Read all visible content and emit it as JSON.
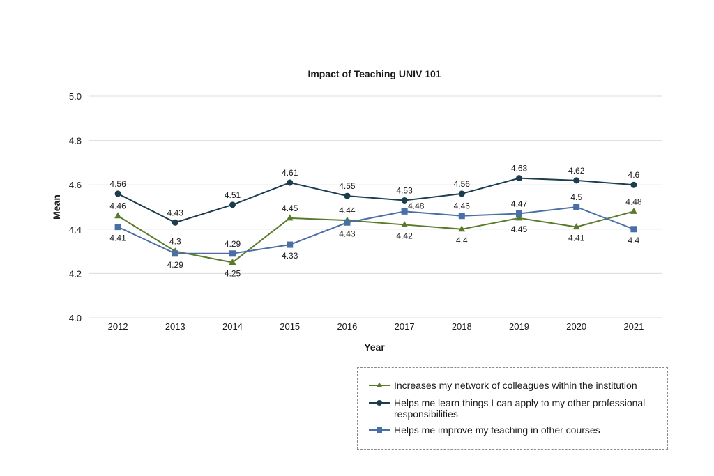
{
  "chart_data": {
    "type": "line",
    "title": "Impact of Teaching UNIV 101",
    "xlabel": "Year",
    "ylabel": "Mean",
    "ylim": [
      4.0,
      5.0
    ],
    "yticks": [
      "4.0",
      "4.2",
      "4.4",
      "4.6",
      "4.8",
      "5.0"
    ],
    "ytick_values": [
      4.0,
      4.2,
      4.4,
      4.6,
      4.8,
      5.0
    ],
    "grid": true,
    "legend_position": "bottom-right",
    "categories": [
      "2012",
      "2013",
      "2014",
      "2015",
      "2016",
      "2017",
      "2018",
      "2019",
      "2020",
      "2021"
    ],
    "series": [
      {
        "name": "Increases my network of colleagues within the institution",
        "marker": "triangle",
        "color": "#5a7a2b",
        "values": [
          4.46,
          4.3,
          4.25,
          4.45,
          4.44,
          4.42,
          4.4,
          4.45,
          4.41,
          4.48
        ],
        "labels": [
          "4.46",
          "4.3",
          "4.25",
          "4.45",
          "4.44",
          "4.42",
          "4.4",
          "4.45",
          "4.41",
          "4.48"
        ],
        "label_pos": [
          "above",
          "above",
          "below",
          "above",
          "above",
          "below",
          "below",
          "below",
          "below",
          "above"
        ]
      },
      {
        "name": "Helps me learn things I can apply to my other professional responsibilities",
        "marker": "circle",
        "color": "#1c3d4f",
        "values": [
          4.56,
          4.43,
          4.51,
          4.61,
          4.55,
          4.53,
          4.56,
          4.63,
          4.62,
          4.6
        ],
        "labels": [
          "4.56",
          "4.43",
          "4.51",
          "4.61",
          "4.55",
          "4.53",
          "4.56",
          "4.63",
          "4.62",
          "4.6"
        ],
        "label_pos": [
          "above",
          "above",
          "above",
          "above",
          "above",
          "above",
          "above",
          "above",
          "above",
          "above"
        ]
      },
      {
        "name": "Helps me improve my teaching in other courses",
        "marker": "square",
        "color": "#4a6fa5",
        "values": [
          4.41,
          4.29,
          4.29,
          4.33,
          4.43,
          4.48,
          4.46,
          4.47,
          4.5,
          4.4
        ],
        "labels": [
          "4.41",
          "4.29",
          "4.29",
          "4.33",
          "4.43",
          "4.48",
          "4.46",
          "4.47",
          "4.5",
          "4.4"
        ],
        "label_pos": [
          "below",
          "below",
          "above",
          "below",
          "below",
          "right",
          "above",
          "above",
          "above",
          "below"
        ]
      }
    ]
  }
}
